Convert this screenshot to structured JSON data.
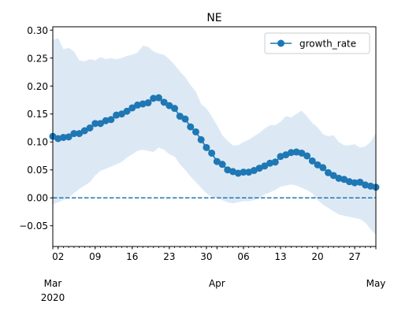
{
  "chart_data": {
    "type": "line",
    "title": "NE",
    "xlabel": "",
    "ylabel": "",
    "x_start": "2020-03-01",
    "x_end": "2020-05-01",
    "xlim": [
      "2020-03-01",
      "2020-05-01"
    ],
    "ylim": [
      -0.087,
      0.306
    ],
    "y_ticks": [
      -0.05,
      0.0,
      0.05,
      0.1,
      0.15,
      0.2,
      0.25,
      0.3
    ],
    "y_tick_labels": [
      "−0.05",
      "0.00",
      "0.05",
      "0.10",
      "0.15",
      "0.20",
      "0.25",
      "0.30"
    ],
    "x_minor_ticks": [
      {
        "date": "2020-03-02",
        "label": "02"
      },
      {
        "date": "2020-03-09",
        "label": "09"
      },
      {
        "date": "2020-03-16",
        "label": "16"
      },
      {
        "date": "2020-03-23",
        "label": "23"
      },
      {
        "date": "2020-03-30",
        "label": "30"
      },
      {
        "date": "2020-04-06",
        "label": "06"
      },
      {
        "date": "2020-04-13",
        "label": "13"
      },
      {
        "date": "2020-04-20",
        "label": "20"
      },
      {
        "date": "2020-04-27",
        "label": "27"
      }
    ],
    "x_major_ticks": [
      {
        "date": "2020-03-01",
        "label": "Mar",
        "sublabel": "2020"
      },
      {
        "date": "2020-04-01",
        "label": "Apr",
        "sublabel": ""
      },
      {
        "date": "2020-05-01",
        "label": "May",
        "sublabel": ""
      }
    ],
    "legend": {
      "position": "top-right",
      "entries": [
        "growth_rate"
      ]
    },
    "grid": false,
    "reference_line": {
      "y": 0,
      "style": "dashed",
      "color": "#1f77b4"
    },
    "colors": {
      "line": "#1f77b4",
      "band": "#dce9f5",
      "axes": "#000000"
    },
    "series": [
      {
        "name": "growth_rate",
        "marker": "circle",
        "x": [
          "2020-03-01",
          "2020-03-02",
          "2020-03-03",
          "2020-03-04",
          "2020-03-05",
          "2020-03-06",
          "2020-03-07",
          "2020-03-08",
          "2020-03-09",
          "2020-03-10",
          "2020-03-11",
          "2020-03-12",
          "2020-03-13",
          "2020-03-14",
          "2020-03-15",
          "2020-03-16",
          "2020-03-17",
          "2020-03-18",
          "2020-03-19",
          "2020-03-20",
          "2020-03-21",
          "2020-03-22",
          "2020-03-23",
          "2020-03-24",
          "2020-03-25",
          "2020-03-26",
          "2020-03-27",
          "2020-03-28",
          "2020-03-29",
          "2020-03-30",
          "2020-03-31",
          "2020-04-01",
          "2020-04-02",
          "2020-04-03",
          "2020-04-04",
          "2020-04-05",
          "2020-04-06",
          "2020-04-07",
          "2020-04-08",
          "2020-04-09",
          "2020-04-10",
          "2020-04-11",
          "2020-04-12",
          "2020-04-13",
          "2020-04-14",
          "2020-04-15",
          "2020-04-16",
          "2020-04-17",
          "2020-04-18",
          "2020-04-19",
          "2020-04-20",
          "2020-04-21",
          "2020-04-22",
          "2020-04-23",
          "2020-04-24",
          "2020-04-25",
          "2020-04-26",
          "2020-04-27",
          "2020-04-28",
          "2020-04-29",
          "2020-04-30",
          "2020-05-01"
        ],
        "values": [
          0.11,
          0.106,
          0.108,
          0.109,
          0.115,
          0.115,
          0.12,
          0.125,
          0.133,
          0.133,
          0.138,
          0.14,
          0.148,
          0.15,
          0.155,
          0.161,
          0.166,
          0.168,
          0.17,
          0.178,
          0.179,
          0.171,
          0.165,
          0.16,
          0.146,
          0.141,
          0.127,
          0.118,
          0.104,
          0.09,
          0.08,
          0.065,
          0.06,
          0.05,
          0.047,
          0.044,
          0.046,
          0.046,
          0.049,
          0.053,
          0.057,
          0.062,
          0.064,
          0.074,
          0.077,
          0.081,
          0.082,
          0.08,
          0.075,
          0.066,
          0.059,
          0.054,
          0.045,
          0.04,
          0.035,
          0.033,
          0.029,
          0.027,
          0.028,
          0.023,
          0.021,
          0.019
        ],
        "lower": [
          -0.012,
          -0.008,
          -0.004,
          0.0,
          0.008,
          0.016,
          0.022,
          0.028,
          0.04,
          0.048,
          0.052,
          0.056,
          0.06,
          0.064,
          0.072,
          0.078,
          0.084,
          0.086,
          0.084,
          0.082,
          0.09,
          0.086,
          0.078,
          0.074,
          0.06,
          0.05,
          0.038,
          0.028,
          0.018,
          0.008,
          0.002,
          0.0,
          -0.004,
          -0.008,
          -0.01,
          -0.008,
          -0.006,
          -0.006,
          -0.004,
          0.0,
          0.006,
          0.01,
          0.014,
          0.02,
          0.022,
          0.024,
          0.022,
          0.018,
          0.014,
          0.008,
          -0.004,
          -0.012,
          -0.018,
          -0.024,
          -0.03,
          -0.032,
          -0.034,
          -0.036,
          -0.038,
          -0.044,
          -0.056,
          -0.066
        ],
        "upper": [
          0.282,
          0.286,
          0.266,
          0.268,
          0.262,
          0.246,
          0.244,
          0.248,
          0.246,
          0.252,
          0.248,
          0.25,
          0.248,
          0.25,
          0.254,
          0.256,
          0.26,
          0.272,
          0.27,
          0.262,
          0.258,
          0.256,
          0.248,
          0.238,
          0.226,
          0.216,
          0.202,
          0.19,
          0.168,
          0.16,
          0.146,
          0.13,
          0.112,
          0.102,
          0.094,
          0.094,
          0.1,
          0.104,
          0.11,
          0.116,
          0.124,
          0.13,
          0.13,
          0.136,
          0.146,
          0.144,
          0.15,
          0.156,
          0.146,
          0.134,
          0.126,
          0.114,
          0.11,
          0.112,
          0.1,
          0.094,
          0.094,
          0.096,
          0.09,
          0.092,
          0.1,
          0.116
        ]
      }
    ]
  }
}
